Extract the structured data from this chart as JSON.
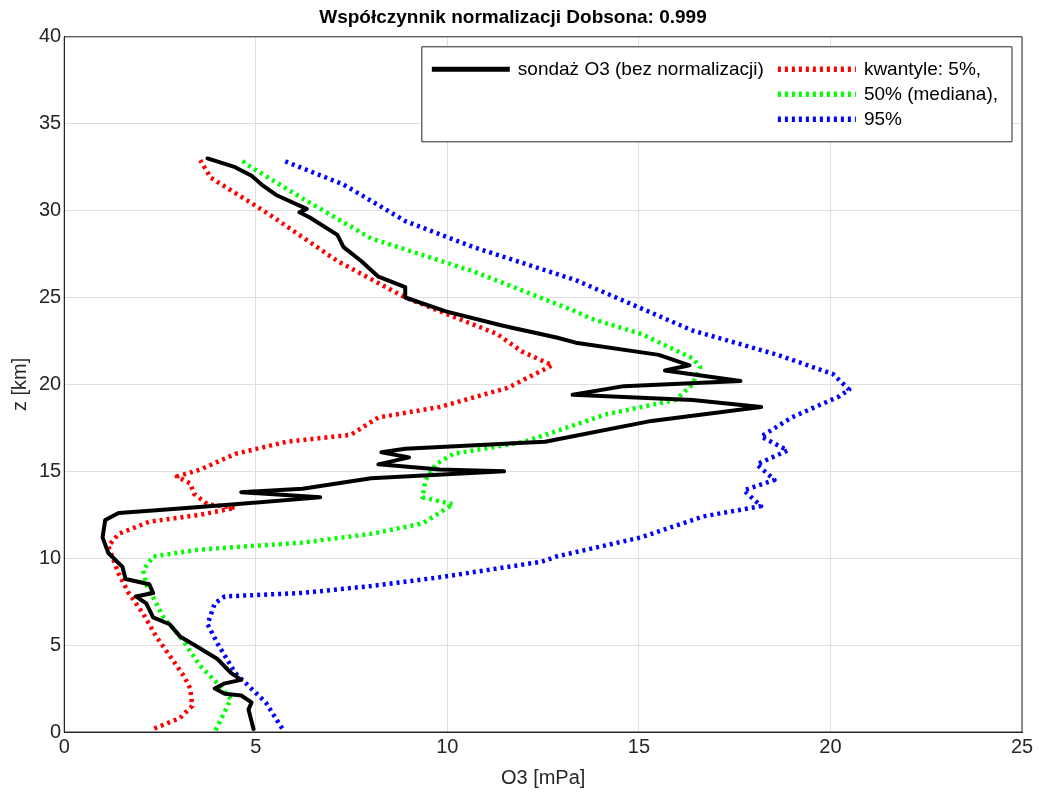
{
  "chart_data": {
    "type": "line",
    "title": "Współczynnik normalizacji Dobsona: 0.999",
    "xlabel": "O3 [mPa]",
    "ylabel": "z [km]",
    "xlim": [
      0,
      25
    ],
    "xticks": [
      0,
      5,
      10,
      15,
      20,
      25
    ],
    "ylim": [
      0,
      40
    ],
    "yticks": [
      0,
      5,
      10,
      15,
      20,
      25,
      30,
      35,
      40
    ],
    "grid": true,
    "legend": "top right",
    "marker": "none",
    "series": [
      {
        "name": "sondaż O3 (bez normalizacji)",
        "color": "#000000",
        "line_style": "solid",
        "x": [
          4.94,
          4.81,
          4.89,
          4.62,
          4.19,
          3.93,
          4.19,
          4.62,
          4.35,
          4.0,
          3.55,
          3.02,
          2.75,
          2.32,
          2.14,
          1.87,
          2.32,
          2.22,
          1.6,
          1.52,
          1.15,
          1.0,
          1.07,
          1.42,
          2.67,
          4.46,
          6.68,
          4.62,
          6.22,
          8.01,
          11.48,
          9.8,
          8.2,
          9.0,
          8.28,
          8.9,
          12.55,
          15.33,
          18.19,
          16.4,
          13.27,
          14.61,
          17.65,
          15.68,
          16.32,
          15.52,
          13.35,
          12.85,
          11.4,
          9.96,
          8.9,
          8.9,
          8.2,
          7.75,
          7.29,
          7.13,
          6.41,
          6.14,
          6.33,
          5.53,
          5.15,
          4.89,
          4.46,
          3.74
        ],
        "values": [
          0.17,
          1.3,
          1.7,
          2.1,
          2.2,
          2.5,
          2.8,
          3.0,
          3.4,
          4.2,
          4.8,
          5.5,
          6.2,
          6.6,
          7.4,
          7.8,
          8.0,
          8.5,
          8.8,
          9.5,
          10.3,
          11.2,
          12.2,
          12.6,
          12.8,
          13.1,
          13.5,
          13.8,
          14.0,
          14.6,
          15.0,
          15.1,
          15.4,
          15.8,
          16.1,
          16.3,
          16.7,
          17.9,
          18.7,
          19.1,
          19.4,
          19.9,
          20.2,
          20.8,
          21.1,
          21.7,
          22.4,
          22.7,
          23.4,
          24.2,
          25.0,
          25.6,
          26.2,
          27.1,
          27.9,
          28.6,
          29.6,
          29.9,
          30.1,
          30.9,
          31.5,
          32.0,
          32.5,
          33.0
        ]
      },
      {
        "name": "kwantyle: 5%,",
        "color": "#ff0000",
        "line_style": "dotted",
        "x": [
          2.35,
          3.02,
          3.34,
          3.29,
          3.13,
          2.75,
          2.4,
          2.06,
          1.68,
          1.42,
          1.15,
          1.42,
          2.22,
          3.55,
          4.46,
          3.74,
          3.39,
          3.29,
          2.94,
          3.55,
          4.46,
          5.8,
          7.48,
          8.2,
          9.8,
          11.57,
          12.74,
          11.94,
          11.3,
          8.9,
          7.13,
          5.34,
          3.82,
          3.55
        ],
        "values": [
          0.2,
          0.8,
          1.5,
          2.5,
          3.2,
          4.4,
          5.5,
          6.8,
          8.0,
          9.1,
          10.7,
          11.4,
          12.1,
          12.5,
          12.9,
          13.1,
          13.7,
          14.3,
          14.7,
          15.1,
          16.0,
          16.7,
          17.1,
          18.1,
          18.7,
          19.8,
          21.1,
          21.9,
          22.9,
          25.0,
          27.1,
          29.8,
          31.9,
          32.9
        ]
      },
      {
        "name": "50% (mediana),",
        "color": "#00ff00",
        "line_style": "dotted",
        "x": [
          3.95,
          4.35,
          4.0,
          3.55,
          3.02,
          2.59,
          2.14,
          2.06,
          2.32,
          3.55,
          6.22,
          8.01,
          9.35,
          10.15,
          9.35,
          9.43,
          9.7,
          10.15,
          12.02,
          14.18,
          15.95,
          16.4,
          16.6,
          16.4,
          15.06,
          13.73,
          13.35,
          10.68,
          8.01,
          6.22,
          4.73,
          4.6
        ],
        "values": [
          0.1,
          1.9,
          2.8,
          3.8,
          5.5,
          6.6,
          8.5,
          9.3,
          10.1,
          10.5,
          10.9,
          11.4,
          12.0,
          13.1,
          13.5,
          14.5,
          15.4,
          16.0,
          16.7,
          18.3,
          19.1,
          20.0,
          21.0,
          21.5,
          22.9,
          23.8,
          24.2,
          26.5,
          28.4,
          30.7,
          32.7,
          33.0
        ]
      },
      {
        "name": "95%",
        "color": "#0000ff",
        "line_style": "dotted",
        "x": [
          5.69,
          5.26,
          4.46,
          4.0,
          3.74,
          3.93,
          4.19,
          6.22,
          8.01,
          9.8,
          12.47,
          12.85,
          15.06,
          16.67,
          18.19,
          17.74,
          18.54,
          18.08,
          18.88,
          18.19,
          18.99,
          19.6,
          20.22,
          20.49,
          20.06,
          18.62,
          16.4,
          13.35,
          10.68,
          8.9,
          7.29,
          5.69
        ],
        "values": [
          0.2,
          1.7,
          3.4,
          5.1,
          6.2,
          7.4,
          7.8,
          8.0,
          8.4,
          8.9,
          9.8,
          10.1,
          11.2,
          12.4,
          13.0,
          13.9,
          14.5,
          15.4,
          16.2,
          17.0,
          18.1,
          18.7,
          19.3,
          19.7,
          20.6,
          21.7,
          23.1,
          26.0,
          27.9,
          29.4,
          31.5,
          32.9
        ]
      }
    ]
  }
}
